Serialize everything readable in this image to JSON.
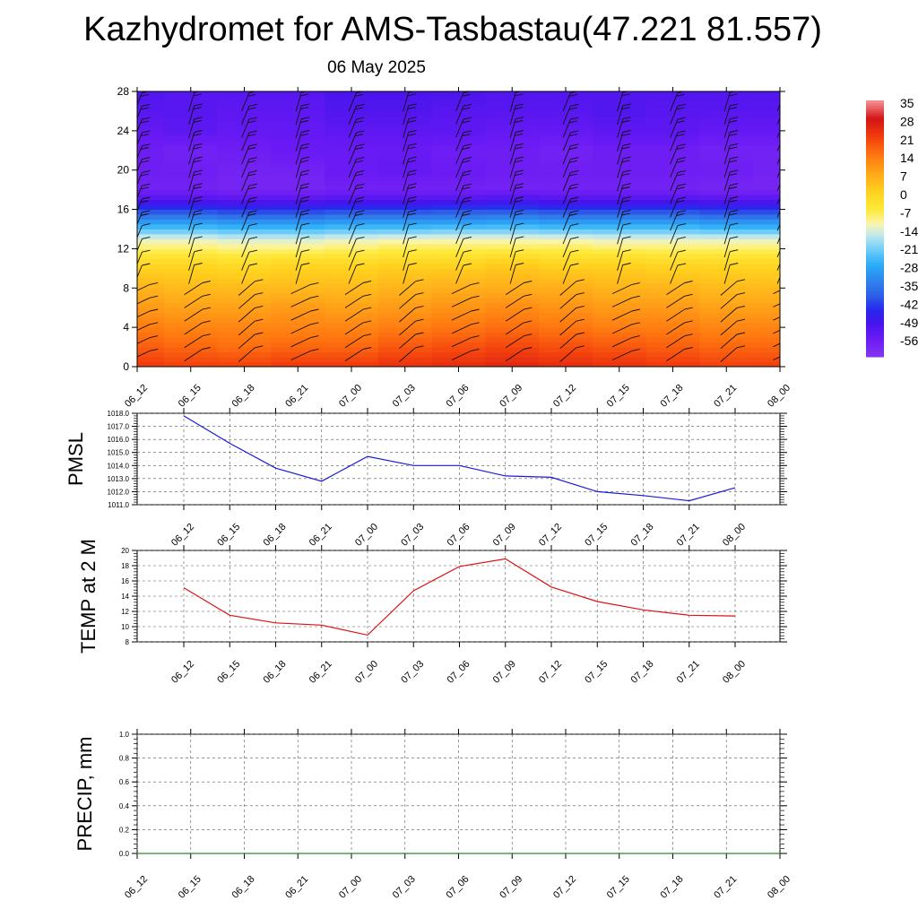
{
  "title": "Kazhydromet for AMS-Tasbastau(47.221 81.557)",
  "subtitle": "06 May 2025",
  "colors": {
    "pmsl_line": "#1a1adb",
    "temp_line": "#dd1111",
    "precip_line": "#2e8b2e",
    "grid": "#333333"
  },
  "chart_data": [
    {
      "type": "heatmap",
      "name": "upper-air-cross-section",
      "x": [
        "06_12",
        "06_15",
        "06_18",
        "06_21",
        "07_00",
        "07_03",
        "07_06",
        "07_09",
        "07_12",
        "07_15",
        "07_18",
        "07_21",
        "08_00"
      ],
      "yticks": [
        0,
        4,
        8,
        12,
        16,
        20,
        24,
        28
      ],
      "ylim": [
        0,
        28
      ],
      "rows": [
        {
          "y": 0,
          "values": [
            22,
            21,
            21,
            22,
            22,
            23,
            24,
            25,
            24,
            23,
            22,
            21,
            21
          ]
        },
        {
          "y": 2,
          "values": [
            17,
            16,
            15,
            16,
            16,
            18,
            19,
            20,
            19,
            18,
            17,
            16,
            16
          ]
        },
        {
          "y": 4,
          "values": [
            13,
            12,
            12,
            12,
            12,
            13,
            14,
            15,
            14,
            13,
            13,
            12,
            12
          ]
        },
        {
          "y": 6,
          "values": [
            9,
            8,
            8,
            9,
            8,
            9,
            10,
            11,
            10,
            9,
            9,
            8,
            8
          ]
        },
        {
          "y": 8,
          "values": [
            5,
            4,
            4,
            4,
            4,
            5,
            6,
            6,
            6,
            5,
            5,
            4,
            4
          ]
        },
        {
          "y": 10,
          "values": [
            0,
            0,
            -1,
            0,
            0,
            1,
            1,
            2,
            1,
            1,
            0,
            0,
            0
          ]
        },
        {
          "y": 11,
          "values": [
            -4,
            -4,
            -5,
            -4,
            -4,
            -3,
            -3,
            -2,
            -3,
            -3,
            -4,
            -4,
            -4
          ]
        },
        {
          "y": 12,
          "values": [
            -9,
            -9,
            -10,
            -10,
            -9,
            -8,
            -8,
            -8,
            -8,
            -9,
            -9,
            -9,
            -9
          ]
        },
        {
          "y": 13,
          "values": [
            -14,
            -14,
            -15,
            -15,
            -14,
            -13,
            -13,
            -13,
            -13,
            -14,
            -14,
            -14,
            -14
          ]
        },
        {
          "y": 14,
          "values": [
            -24,
            -24,
            -25,
            -25,
            -24,
            -24,
            -23,
            -23,
            -24,
            -24,
            -24,
            -25,
            -25
          ]
        },
        {
          "y": 15,
          "values": [
            -33,
            -33,
            -34,
            -34,
            -33,
            -33,
            -33,
            -32,
            -33,
            -33,
            -33,
            -34,
            -34
          ]
        },
        {
          "y": 16,
          "values": [
            -43,
            -43,
            -44,
            -44,
            -43,
            -43,
            -42,
            -42,
            -43,
            -43,
            -43,
            -44,
            -44
          ]
        },
        {
          "y": 17,
          "values": [
            -52,
            -52,
            -53,
            -53,
            -52,
            -52,
            -52,
            -51,
            -52,
            -52,
            -52,
            -53,
            -53
          ]
        },
        {
          "y": 18,
          "values": [
            -58,
            -58,
            -59,
            -59,
            -58,
            -58,
            -58,
            -58,
            -58,
            -58,
            -58,
            -59,
            -59
          ]
        },
        {
          "y": 20,
          "values": [
            -57,
            -57,
            -58,
            -58,
            -56,
            -55,
            -56,
            -57,
            -57,
            -57,
            -57,
            -57,
            -58
          ]
        },
        {
          "y": 22,
          "values": [
            -57,
            -58,
            -57,
            -56,
            -56,
            -56,
            -57,
            -57,
            -58,
            -57,
            -57,
            -58,
            -58
          ]
        },
        {
          "y": 24,
          "values": [
            -55,
            -54,
            -55,
            -55,
            -54,
            -54,
            -54,
            -55,
            -55,
            -54,
            -54,
            -55,
            -55
          ]
        },
        {
          "y": 26,
          "values": [
            -53,
            -53,
            -54,
            -54,
            -52,
            -52,
            -53,
            -53,
            -53,
            -52,
            -53,
            -53,
            -53
          ]
        },
        {
          "y": 28,
          "values": [
            -52,
            -53,
            -53,
            -53,
            -51,
            -51,
            -51,
            -52,
            -52,
            -52,
            -52,
            -52,
            -52
          ]
        }
      ],
      "colorbar": {
        "labels": [
          "35",
          "28",
          "21",
          "14",
          "7",
          "0",
          "-7",
          "-14",
          "-21",
          "-28",
          "-35",
          "-42",
          "-49",
          "-56"
        ],
        "range": [
          -63,
          35
        ]
      }
    },
    {
      "type": "line",
      "name": "pmsl",
      "ylabel": "PMSL",
      "x": [
        "06_12",
        "06_15",
        "06_18",
        "06_21",
        "07_00",
        "07_03",
        "07_06",
        "07_09",
        "07_12",
        "07_15",
        "07_18",
        "07_21",
        "08_00"
      ],
      "values": [
        1017.8,
        1015.7,
        1013.8,
        1012.8,
        1014.7,
        1014.0,
        1014.0,
        1013.2,
        1013.1,
        1012.0,
        1011.7,
        1011.3,
        1012.3
      ],
      "ylim": [
        1011.0,
        1018.0
      ],
      "yticks": [
        "1011.0",
        "1012.0",
        "1013.0",
        "1014.0",
        "1015.0",
        "1016.0",
        "1017.0",
        "1018.0"
      ]
    },
    {
      "type": "line",
      "name": "temp-2m",
      "ylabel": "TEMP at 2 M",
      "x": [
        "06_12",
        "06_15",
        "06_18",
        "06_21",
        "07_00",
        "07_03",
        "07_06",
        "07_09",
        "07_12",
        "07_15",
        "07_18",
        "07_21",
        "08_00"
      ],
      "values": [
        15.1,
        11.5,
        10.5,
        10.2,
        8.9,
        14.7,
        17.9,
        18.9,
        15.2,
        13.3,
        12.2,
        11.5,
        11.4
      ],
      "ylim": [
        8,
        20
      ],
      "yticks": [
        "8",
        "10",
        "12",
        "14",
        "16",
        "18",
        "20"
      ]
    },
    {
      "type": "line",
      "name": "precip",
      "ylabel": "PRECIP, mm",
      "x": [
        "06_12",
        "06_15",
        "06_18",
        "06_21",
        "07_00",
        "07_03",
        "07_06",
        "07_09",
        "07_12",
        "07_15",
        "07_18",
        "07_21",
        "08_00"
      ],
      "values": [
        0,
        0,
        0,
        0,
        0,
        0,
        0,
        0,
        0,
        0,
        0,
        0,
        0
      ],
      "ylim": [
        0.0,
        1.0
      ],
      "yticks": [
        "0.0",
        "0.2",
        "0.4",
        "0.6",
        "0.8",
        "1.0"
      ]
    }
  ]
}
